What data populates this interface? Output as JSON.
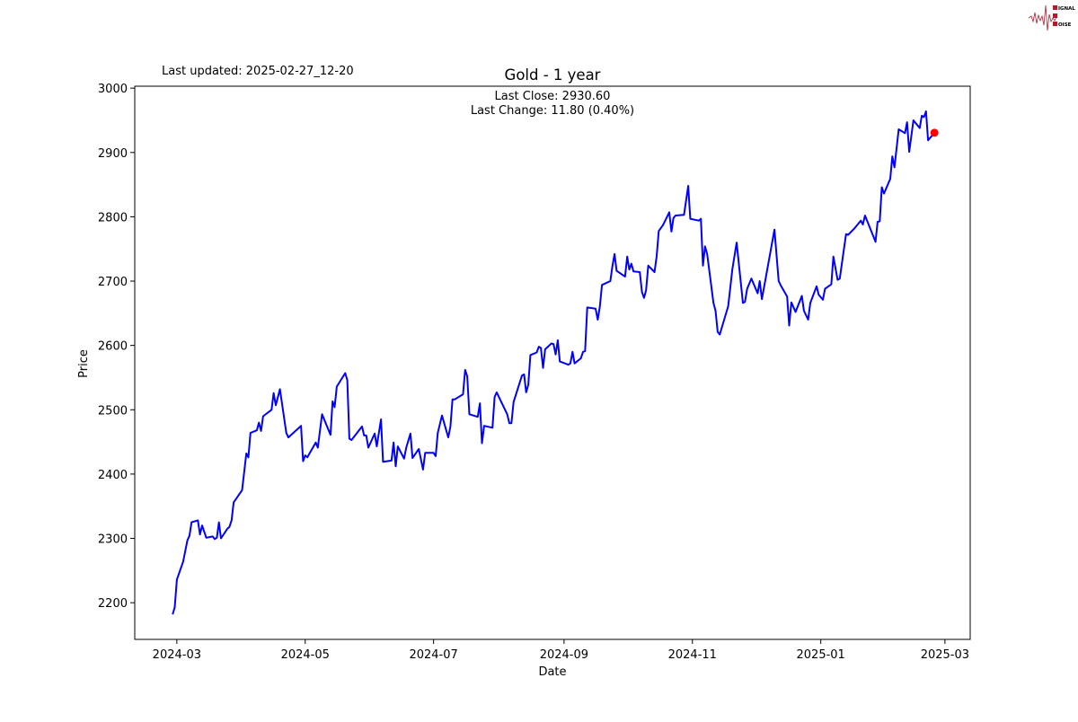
{
  "logo": {
    "text": "SIGNAL 2 NOISE",
    "color": "#b01c2e"
  },
  "header": {
    "last_updated": "Last updated: 2025-02-27_12-20"
  },
  "chart_data": {
    "type": "line",
    "title": "Gold - 1 year",
    "xlabel": "Date",
    "ylabel": "Price",
    "annotation": {
      "last_close": "Last Close: 2930.60",
      "last_change": "Last Change: 11.80 (0.40%)"
    },
    "xlim": [
      "2024-02-10",
      "2025-03-13"
    ],
    "ylim": [
      2143,
      3003
    ],
    "xticks": [
      "2024-03",
      "2024-05",
      "2024-07",
      "2024-09",
      "2024-11",
      "2025-01",
      "2025-03"
    ],
    "yticks": [
      2200,
      2300,
      2400,
      2500,
      2600,
      2700,
      2800,
      2900,
      3000
    ],
    "grid": false,
    "line_color": "#0000ff",
    "last_point_color": "#ff0000",
    "last_point": [
      "2025-02-24",
      2930.6
    ],
    "series": [
      {
        "points": [
          [
            "2024-02-28",
            2182
          ],
          [
            "2024-02-29",
            2193
          ],
          [
            "2024-03-01",
            2236
          ],
          [
            "2024-03-04",
            2264
          ],
          [
            "2024-03-06",
            2297
          ],
          [
            "2024-03-07",
            2304
          ],
          [
            "2024-03-08",
            2325
          ],
          [
            "2024-03-11",
            2328
          ],
          [
            "2024-03-12",
            2306
          ],
          [
            "2024-03-13",
            2320
          ],
          [
            "2024-03-15",
            2301
          ],
          [
            "2024-03-18",
            2303
          ],
          [
            "2024-03-19",
            2299
          ],
          [
            "2024-03-20",
            2301
          ],
          [
            "2024-03-21",
            2325
          ],
          [
            "2024-03-22",
            2300
          ],
          [
            "2024-03-25",
            2315
          ],
          [
            "2024-03-26",
            2318
          ],
          [
            "2024-03-27",
            2328
          ],
          [
            "2024-03-28",
            2356
          ],
          [
            "2024-04-01",
            2375
          ],
          [
            "2024-04-03",
            2432
          ],
          [
            "2024-04-04",
            2426
          ],
          [
            "2024-04-05",
            2464
          ],
          [
            "2024-04-08",
            2468
          ],
          [
            "2024-04-09",
            2480
          ],
          [
            "2024-04-10",
            2467
          ],
          [
            "2024-04-11",
            2490
          ],
          [
            "2024-04-15",
            2500
          ],
          [
            "2024-04-16",
            2526
          ],
          [
            "2024-04-17",
            2507
          ],
          [
            "2024-04-19",
            2532
          ],
          [
            "2024-04-22",
            2464
          ],
          [
            "2024-04-23",
            2457
          ],
          [
            "2024-04-29",
            2475
          ],
          [
            "2024-04-30",
            2420
          ],
          [
            "2024-05-01",
            2429
          ],
          [
            "2024-05-02",
            2426
          ],
          [
            "2024-05-06",
            2449
          ],
          [
            "2024-05-07",
            2441
          ],
          [
            "2024-05-09",
            2493
          ],
          [
            "2024-05-13",
            2461
          ],
          [
            "2024-05-14",
            2513
          ],
          [
            "2024-05-15",
            2504
          ],
          [
            "2024-05-16",
            2536
          ],
          [
            "2024-05-20",
            2557
          ],
          [
            "2024-05-21",
            2546
          ],
          [
            "2024-05-22",
            2455
          ],
          [
            "2024-05-23",
            2453
          ],
          [
            "2024-05-28",
            2474
          ],
          [
            "2024-05-29",
            2460
          ],
          [
            "2024-05-30",
            2460
          ],
          [
            "2024-05-31",
            2441
          ],
          [
            "2024-06-03",
            2463
          ],
          [
            "2024-06-04",
            2443
          ],
          [
            "2024-06-06",
            2485
          ],
          [
            "2024-06-07",
            2419
          ],
          [
            "2024-06-11",
            2421
          ],
          [
            "2024-06-12",
            2449
          ],
          [
            "2024-06-13",
            2412
          ],
          [
            "2024-06-14",
            2443
          ],
          [
            "2024-06-17",
            2424
          ],
          [
            "2024-06-18",
            2441
          ],
          [
            "2024-06-20",
            2463
          ],
          [
            "2024-06-21",
            2425
          ],
          [
            "2024-06-24",
            2439
          ],
          [
            "2024-06-26",
            2407
          ],
          [
            "2024-06-27",
            2433
          ],
          [
            "2024-07-01",
            2433
          ],
          [
            "2024-07-02",
            2428
          ],
          [
            "2024-07-03",
            2464
          ],
          [
            "2024-07-05",
            2491
          ],
          [
            "2024-07-08",
            2457
          ],
          [
            "2024-07-09",
            2474
          ],
          [
            "2024-07-10",
            2516
          ],
          [
            "2024-07-11",
            2516
          ],
          [
            "2024-07-15",
            2524
          ],
          [
            "2024-07-16",
            2562
          ],
          [
            "2024-07-17",
            2552
          ],
          [
            "2024-07-18",
            2493
          ],
          [
            "2024-07-22",
            2489
          ],
          [
            "2024-07-23",
            2510
          ],
          [
            "2024-07-24",
            2448
          ],
          [
            "2024-07-25",
            2475
          ],
          [
            "2024-07-29",
            2472
          ],
          [
            "2024-07-30",
            2520
          ],
          [
            "2024-07-31",
            2527
          ],
          [
            "2024-08-05",
            2493
          ],
          [
            "2024-08-06",
            2479
          ],
          [
            "2024-08-07",
            2479
          ],
          [
            "2024-08-08",
            2512
          ],
          [
            "2024-08-12",
            2553
          ],
          [
            "2024-08-13",
            2555
          ],
          [
            "2024-08-14",
            2527
          ],
          [
            "2024-08-15",
            2539
          ],
          [
            "2024-08-16",
            2585
          ],
          [
            "2024-08-19",
            2589
          ],
          [
            "2024-08-20",
            2598
          ],
          [
            "2024-08-21",
            2596
          ],
          [
            "2024-08-22",
            2565
          ],
          [
            "2024-08-23",
            2594
          ],
          [
            "2024-08-26",
            2603
          ],
          [
            "2024-08-27",
            2602
          ],
          [
            "2024-08-28",
            2586
          ],
          [
            "2024-08-29",
            2608
          ],
          [
            "2024-08-30",
            2575
          ],
          [
            "2024-09-03",
            2570
          ],
          [
            "2024-09-04",
            2572
          ],
          [
            "2024-09-05",
            2590
          ],
          [
            "2024-09-06",
            2572
          ],
          [
            "2024-09-09",
            2580
          ],
          [
            "2024-09-10",
            2590
          ],
          [
            "2024-09-11",
            2591
          ],
          [
            "2024-09-12",
            2659
          ],
          [
            "2024-09-16",
            2657
          ],
          [
            "2024-09-17",
            2640
          ],
          [
            "2024-09-18",
            2660
          ],
          [
            "2024-09-19",
            2694
          ],
          [
            "2024-09-23",
            2700
          ],
          [
            "2024-09-24",
            2724
          ],
          [
            "2024-09-25",
            2742
          ],
          [
            "2024-09-26",
            2716
          ],
          [
            "2024-09-30",
            2707
          ],
          [
            "2024-10-01",
            2738
          ],
          [
            "2024-10-02",
            2718
          ],
          [
            "2024-10-03",
            2727
          ],
          [
            "2024-10-04",
            2715
          ],
          [
            "2024-10-07",
            2714
          ],
          [
            "2024-10-08",
            2683
          ],
          [
            "2024-10-09",
            2674
          ],
          [
            "2024-10-10",
            2686
          ],
          [
            "2024-10-11",
            2724
          ],
          [
            "2024-10-14",
            2714
          ],
          [
            "2024-10-15",
            2739
          ],
          [
            "2024-10-16",
            2778
          ],
          [
            "2024-10-18",
            2787
          ],
          [
            "2024-10-21",
            2807
          ],
          [
            "2024-10-22",
            2777
          ],
          [
            "2024-10-23",
            2798
          ],
          [
            "2024-10-24",
            2802
          ],
          [
            "2024-10-28",
            2803
          ],
          [
            "2024-10-30",
            2848
          ],
          [
            "2024-10-31",
            2797
          ],
          [
            "2024-11-04",
            2794
          ],
          [
            "2024-11-05",
            2797
          ],
          [
            "2024-11-06",
            2724
          ],
          [
            "2024-11-07",
            2754
          ],
          [
            "2024-11-08",
            2742
          ],
          [
            "2024-11-11",
            2666
          ],
          [
            "2024-11-12",
            2654
          ],
          [
            "2024-11-13",
            2621
          ],
          [
            "2024-11-14",
            2617
          ],
          [
            "2024-11-18",
            2661
          ],
          [
            "2024-11-20",
            2719
          ],
          [
            "2024-11-22",
            2760
          ],
          [
            "2024-11-25",
            2666
          ],
          [
            "2024-11-26",
            2668
          ],
          [
            "2024-11-27",
            2688
          ],
          [
            "2024-11-29",
            2704
          ],
          [
            "2024-12-02",
            2681
          ],
          [
            "2024-12-03",
            2700
          ],
          [
            "2024-12-04",
            2672
          ],
          [
            "2024-12-06",
            2708
          ],
          [
            "2024-12-10",
            2780
          ],
          [
            "2024-12-12",
            2700
          ],
          [
            "2024-12-13",
            2693
          ],
          [
            "2024-12-16",
            2676
          ],
          [
            "2024-12-17",
            2631
          ],
          [
            "2024-12-18",
            2667
          ],
          [
            "2024-12-20",
            2652
          ],
          [
            "2024-12-23",
            2677
          ],
          [
            "2024-12-24",
            2654
          ],
          [
            "2024-12-26",
            2640
          ],
          [
            "2024-12-27",
            2666
          ],
          [
            "2024-12-30",
            2692
          ],
          [
            "2024-12-31",
            2679
          ],
          [
            "2025-01-02",
            2671
          ],
          [
            "2025-01-03",
            2688
          ],
          [
            "2025-01-06",
            2695
          ],
          [
            "2025-01-07",
            2738
          ],
          [
            "2025-01-09",
            2702
          ],
          [
            "2025-01-10",
            2704
          ],
          [
            "2025-01-13",
            2773
          ],
          [
            "2025-01-14",
            2772
          ],
          [
            "2025-01-17",
            2782
          ],
          [
            "2025-01-20",
            2794
          ],
          [
            "2025-01-21",
            2788
          ],
          [
            "2025-01-22",
            2802
          ],
          [
            "2025-01-27",
            2761
          ],
          [
            "2025-01-28",
            2792
          ],
          [
            "2025-01-29",
            2793
          ],
          [
            "2025-01-30",
            2846
          ],
          [
            "2025-01-31",
            2836
          ],
          [
            "2025-02-03",
            2859
          ],
          [
            "2025-02-04",
            2894
          ],
          [
            "2025-02-05",
            2877
          ],
          [
            "2025-02-07",
            2936
          ],
          [
            "2025-02-10",
            2930
          ],
          [
            "2025-02-11",
            2947
          ],
          [
            "2025-02-12",
            2901
          ],
          [
            "2025-02-14",
            2950
          ],
          [
            "2025-02-17",
            2938
          ],
          [
            "2025-02-18",
            2957
          ],
          [
            "2025-02-19",
            2955
          ],
          [
            "2025-02-20",
            2964
          ],
          [
            "2025-02-21",
            2919
          ],
          [
            "2025-02-24",
            2930.6
          ]
        ]
      }
    ]
  }
}
